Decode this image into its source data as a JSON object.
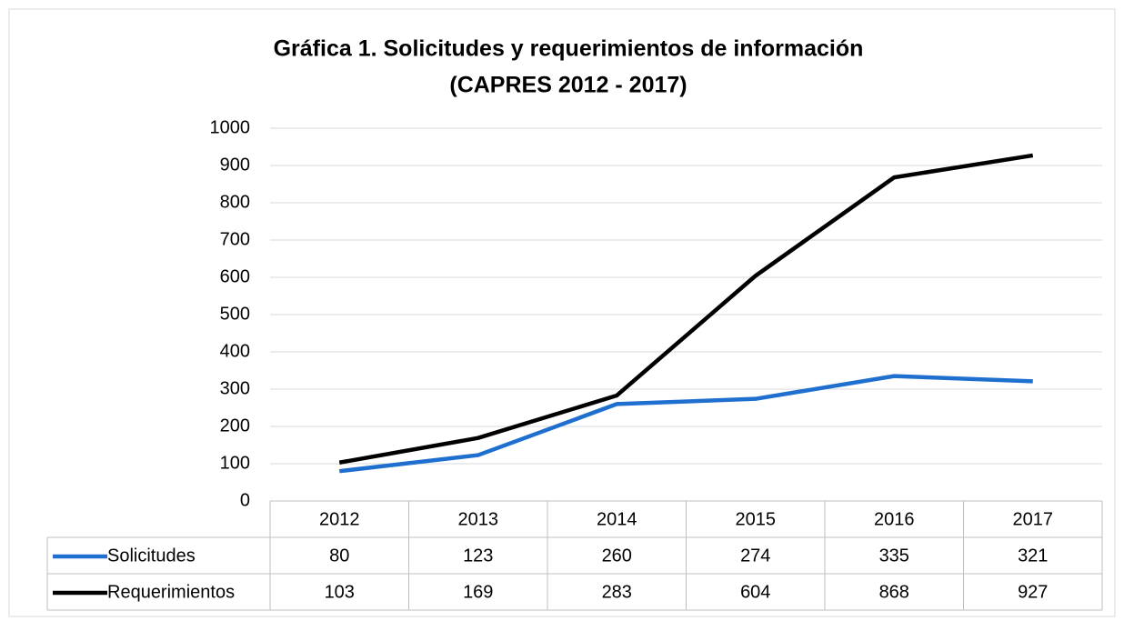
{
  "chart_data": {
    "type": "line",
    "title": "Gráfica 1. Solicitudes y requerimientos de información",
    "subtitle": "(CAPRES 2012 - 2017)",
    "categories": [
      "2012",
      "2013",
      "2014",
      "2015",
      "2016",
      "2017"
    ],
    "series": [
      {
        "name": "Solicitudes",
        "color": "#1f6fcf",
        "values": [
          80,
          123,
          260,
          274,
          335,
          321
        ]
      },
      {
        "name": "Requerimientos",
        "color": "#000000",
        "values": [
          103,
          169,
          283,
          604,
          868,
          927
        ]
      }
    ],
    "ylim": [
      0,
      1000
    ],
    "yticks": [
      0,
      100,
      200,
      300,
      400,
      500,
      600,
      700,
      800,
      900,
      1000
    ],
    "grid": true,
    "data_table": true
  }
}
